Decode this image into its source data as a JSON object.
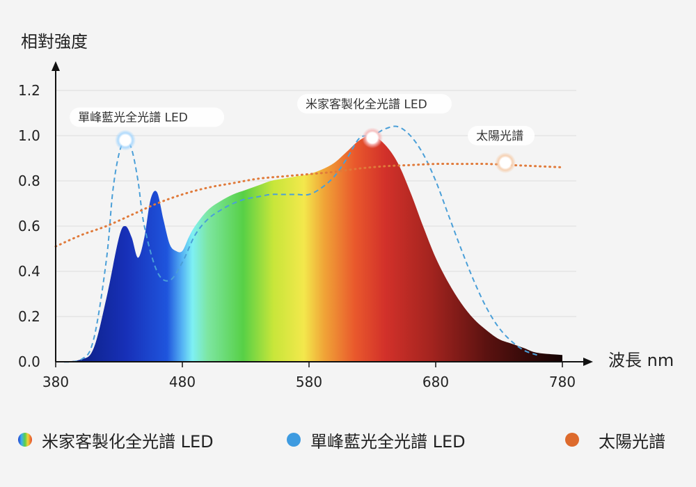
{
  "colors": {
    "background": "#f4f4f4",
    "grid": "#dcdcdc",
    "axis": "#111111",
    "blue_peak_led": "#4a9fd8",
    "sunlight": "#e07a3a"
  },
  "chart_data": {
    "type": "area",
    "ylabel": "相對強度",
    "xlabel": "波長 nm",
    "xlim": [
      380,
      780
    ],
    "ylim": [
      0,
      1.2
    ],
    "xticks": [
      "380",
      "480",
      "580",
      "680",
      "780"
    ],
    "yticks": [
      "0.0",
      "0.2",
      "0.4",
      "0.6",
      "0.8",
      "1.0",
      "1.2"
    ],
    "grid": true,
    "series": [
      {
        "name": "米家客製化全光譜 LED",
        "style": "filled spectrum gradient",
        "x": [
          380,
          400,
          410,
          420,
          430,
          435,
          440,
          445,
          450,
          455,
          460,
          465,
          470,
          475,
          480,
          485,
          490,
          500,
          510,
          520,
          530,
          540,
          550,
          560,
          570,
          580,
          590,
          600,
          610,
          620,
          630,
          640,
          650,
          660,
          670,
          680,
          690,
          700,
          710,
          720,
          730,
          740,
          750,
          760,
          780
        ],
        "y": [
          0,
          0.01,
          0.06,
          0.28,
          0.55,
          0.6,
          0.55,
          0.46,
          0.55,
          0.72,
          0.75,
          0.63,
          0.52,
          0.49,
          0.49,
          0.55,
          0.6,
          0.67,
          0.71,
          0.74,
          0.76,
          0.78,
          0.8,
          0.81,
          0.82,
          0.83,
          0.85,
          0.88,
          0.93,
          0.98,
          1.0,
          0.96,
          0.88,
          0.75,
          0.6,
          0.46,
          0.35,
          0.26,
          0.19,
          0.14,
          0.1,
          0.08,
          0.06,
          0.04,
          0.03
        ]
      },
      {
        "name": "單峰藍光全光譜 LED",
        "style": "dashed",
        "x": [
          380,
          400,
          410,
          420,
          425,
          430,
          435,
          440,
          445,
          450,
          460,
          470,
          480,
          490,
          500,
          510,
          520,
          530,
          540,
          550,
          560,
          570,
          580,
          590,
          600,
          610,
          620,
          630,
          640,
          650,
          660,
          670,
          680,
          690,
          700,
          710,
          720,
          730,
          740,
          750,
          760
        ],
        "y": [
          0,
          0.01,
          0.1,
          0.45,
          0.75,
          0.92,
          0.98,
          0.94,
          0.8,
          0.6,
          0.4,
          0.36,
          0.44,
          0.56,
          0.63,
          0.67,
          0.7,
          0.72,
          0.73,
          0.74,
          0.74,
          0.74,
          0.74,
          0.77,
          0.82,
          0.9,
          0.99,
          1.0,
          1.03,
          1.04,
          1.0,
          0.92,
          0.8,
          0.65,
          0.5,
          0.36,
          0.24,
          0.15,
          0.09,
          0.05,
          0.03
        ]
      },
      {
        "name": "太陽光譜",
        "style": "dotted",
        "x": [
          380,
          400,
          420,
          440,
          460,
          480,
          500,
          520,
          540,
          560,
          580,
          600,
          620,
          640,
          660,
          680,
          700,
          720,
          740,
          760,
          780
        ],
        "y": [
          0.51,
          0.56,
          0.6,
          0.65,
          0.7,
          0.74,
          0.77,
          0.79,
          0.81,
          0.82,
          0.83,
          0.84,
          0.855,
          0.865,
          0.87,
          0.875,
          0.875,
          0.875,
          0.87,
          0.865,
          0.86
        ]
      }
    ],
    "annotations": [
      {
        "text": "單峰藍光全光譜 LED",
        "x": 435,
        "y": 0.98
      },
      {
        "text": "米家客製化全光譜 LED",
        "x": 630,
        "y": 0.99
      },
      {
        "text": "太陽光譜",
        "x": 735,
        "y": 0.88
      }
    ],
    "legend_position": "bottom",
    "legend": [
      {
        "label": "米家客製化全光譜 LED",
        "marker": "rainbow"
      },
      {
        "label": "單峰藍光全光譜 LED",
        "marker": "blue"
      },
      {
        "label": "太陽光譜",
        "marker": "orange"
      }
    ]
  }
}
